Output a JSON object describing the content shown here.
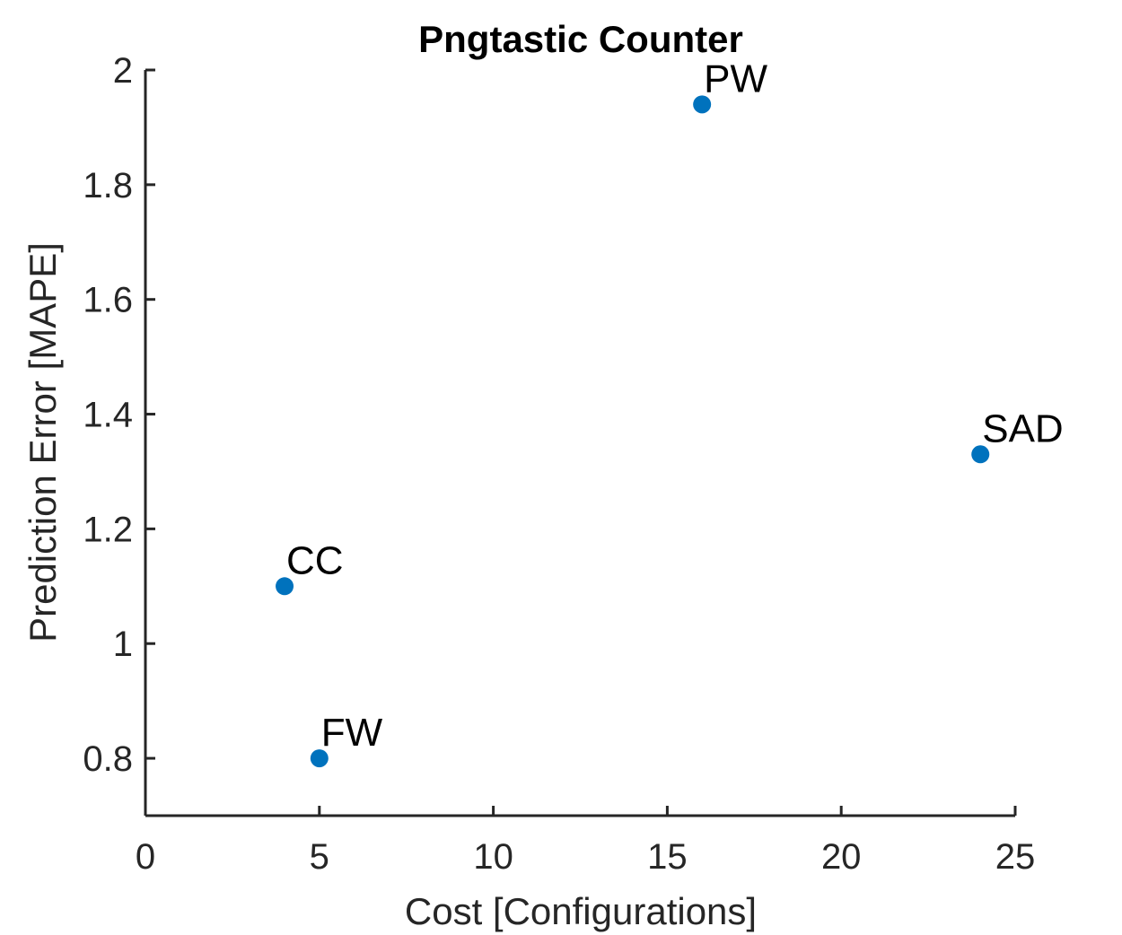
{
  "chart_data": {
    "type": "scatter",
    "title": "Pngtastic Counter",
    "xlabel": "Cost [Configurations]",
    "ylabel": "Prediction Error [MAPE]",
    "xlim": [
      0,
      25
    ],
    "ylim": [
      0.7,
      2.0
    ],
    "xticks": [
      0,
      5,
      10,
      15,
      20,
      25
    ],
    "yticks": [
      0.8,
      1,
      1.2,
      1.4,
      1.6,
      1.8,
      2
    ],
    "xtick_labels": [
      "0",
      "5",
      "10",
      "15",
      "20",
      "25"
    ],
    "ytick_labels": [
      "0.8",
      "1",
      "1.2",
      "1.4",
      "1.6",
      "1.8",
      "2"
    ],
    "grid": false,
    "legend": "none",
    "marker_color": "#0072BD",
    "points": [
      {
        "label": "PW",
        "x": 16,
        "y": 1.94
      },
      {
        "label": "SAD",
        "x": 24,
        "y": 1.33
      },
      {
        "label": "CC",
        "x": 4,
        "y": 1.1
      },
      {
        "label": "FW",
        "x": 5,
        "y": 0.8
      }
    ]
  }
}
